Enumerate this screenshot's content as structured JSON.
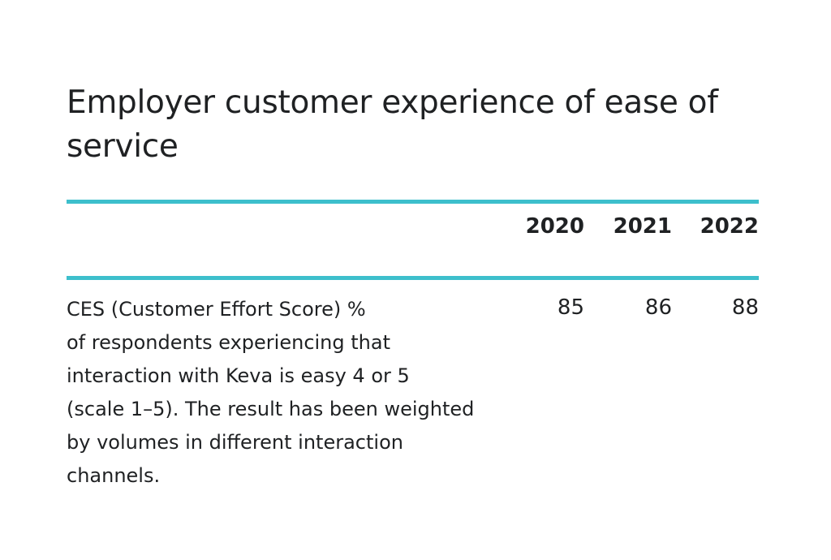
{
  "title": "Employer customer experience of ease of service",
  "table": {
    "years": [
      "2020",
      "2021",
      "2022"
    ],
    "rows": [
      {
        "label": "CES (Customer Effort Score) %\nof respondents experiencing that\ninteraction with Keva is easy 4 or 5\n(scale 1–5). The result has been weighted\nby volumes in different interaction\nchannels.",
        "values": [
          "85",
          "86",
          "88"
        ]
      }
    ]
  },
  "colors": {
    "accent": "#3dbfcc",
    "text": "#1f2123",
    "background": "#ffffff"
  }
}
